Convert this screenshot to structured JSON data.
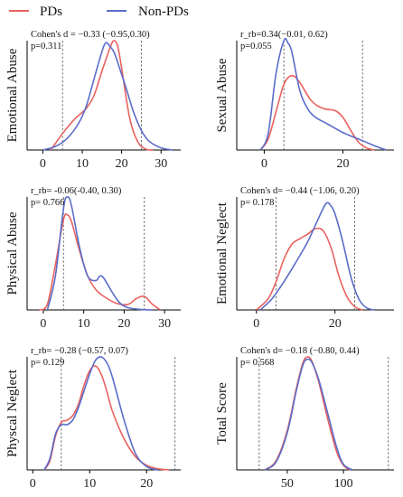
{
  "legend": [
    {
      "name": "PDs",
      "color": "#e8625f"
    },
    {
      "name": "Non-PDs",
      "color": "#5b6cc8"
    }
  ],
  "chart_data": [
    {
      "type": "line",
      "ylabel": "Emotional Abuse",
      "xlim": [
        -4,
        35
      ],
      "xticks": [
        "0",
        "10",
        "20",
        "30"
      ],
      "annotation": [
        "Cohen's d = −0.33 (−0.95,0.30)",
        "p=0.311"
      ],
      "vlines": [
        5,
        25
      ],
      "series": [
        {
          "name": "PDs",
          "x": [
            2,
            5,
            8,
            11,
            13,
            15,
            17,
            18,
            19,
            20,
            22,
            24,
            26,
            28
          ],
          "y": [
            0.0,
            0.15,
            0.28,
            0.38,
            0.5,
            0.72,
            0.93,
            1.0,
            0.95,
            0.75,
            0.3,
            0.08,
            0.01,
            0.0
          ]
        },
        {
          "name": "Non-PDs",
          "x": [
            0,
            3,
            6,
            9,
            11,
            13,
            15,
            16,
            17,
            18,
            19,
            21,
            23,
            25,
            27,
            30,
            33
          ],
          "y": [
            0.0,
            0.03,
            0.1,
            0.24,
            0.4,
            0.65,
            0.9,
            0.98,
            0.95,
            0.9,
            0.8,
            0.58,
            0.35,
            0.18,
            0.08,
            0.02,
            0.0
          ]
        }
      ]
    },
    {
      "type": "line",
      "ylabel": "Sexual Abuse",
      "xlim": [
        -7,
        33
      ],
      "xticks": [
        "0",
        "20"
      ],
      "annotation": [
        "r_rb=0.34(−0.01, 0.62)",
        "p=0.055"
      ],
      "vlines": [
        5,
        25
      ],
      "series": [
        {
          "name": "PDs",
          "x": [
            -1,
            1,
            3,
            5,
            7,
            9,
            12,
            15,
            18,
            20,
            22,
            24,
            26,
            28
          ],
          "y": [
            0.0,
            0.1,
            0.35,
            0.6,
            0.68,
            0.62,
            0.45,
            0.38,
            0.36,
            0.3,
            0.18,
            0.07,
            0.02,
            0.0
          ]
        },
        {
          "name": "Non-PDs",
          "x": [
            -1,
            1,
            3,
            5,
            6,
            7,
            9,
            11,
            13,
            16,
            20,
            24,
            28,
            31
          ],
          "y": [
            0.0,
            0.15,
            0.7,
            1.0,
            0.98,
            0.9,
            0.55,
            0.38,
            0.3,
            0.24,
            0.16,
            0.1,
            0.04,
            0.0
          ]
        }
      ]
    },
    {
      "type": "line",
      "ylabel": "Physical Abuse",
      "xlim": [
        -4,
        34
      ],
      "xticks": [
        "0",
        "10",
        "20",
        "30"
      ],
      "annotation": [
        "r_rb= -0.06(-0.40, 0.30)",
        "p= 0.766"
      ],
      "vlines": [
        5,
        25
      ],
      "series": [
        {
          "name": "PDs",
          "x": [
            -1,
            1,
            3,
            5,
            6,
            7,
            9,
            11,
            13,
            15,
            18,
            21,
            23,
            25,
            27,
            29
          ],
          "y": [
            0.0,
            0.05,
            0.4,
            0.8,
            0.84,
            0.78,
            0.52,
            0.3,
            0.18,
            0.12,
            0.06,
            0.05,
            0.1,
            0.12,
            0.05,
            0.0
          ]
        },
        {
          "name": "Non-PDs",
          "x": [
            1,
            3,
            5,
            6,
            7,
            9,
            11,
            13,
            14,
            15,
            17,
            19,
            21,
            24,
            27
          ],
          "y": [
            0.0,
            0.3,
            0.9,
            1.0,
            0.92,
            0.55,
            0.3,
            0.26,
            0.3,
            0.28,
            0.16,
            0.06,
            0.02,
            0.005,
            0.0
          ]
        }
      ]
    },
    {
      "type": "line",
      "ylabel": "Emotional Neglect",
      "xlim": [
        -5,
        35
      ],
      "xticks": [
        "0",
        "20"
      ],
      "annotation": [
        "Cohen's d= −0.44 (−1.06, 0.20)",
        "p= 0.178"
      ],
      "vlines": [
        5,
        25
      ],
      "series": [
        {
          "name": "PDs",
          "x": [
            0,
            3,
            5,
            7,
            9,
            11,
            13,
            15,
            17,
            19,
            21,
            23,
            25,
            27
          ],
          "y": [
            0.0,
            0.1,
            0.25,
            0.45,
            0.58,
            0.63,
            0.67,
            0.72,
            0.7,
            0.55,
            0.3,
            0.12,
            0.03,
            0.0
          ]
        },
        {
          "name": "Non-PDs",
          "x": [
            1,
            4,
            7,
            10,
            13,
            15,
            17,
            18,
            19,
            20,
            22,
            24,
            26,
            28,
            30
          ],
          "y": [
            0.0,
            0.1,
            0.25,
            0.42,
            0.6,
            0.75,
            0.9,
            0.95,
            0.92,
            0.85,
            0.6,
            0.3,
            0.1,
            0.02,
            0.0
          ]
        }
      ]
    },
    {
      "type": "line",
      "ylabel": "Physcal Neglect",
      "xlim": [
        -1,
        26
      ],
      "xticks": [
        "0",
        "10",
        "20"
      ],
      "annotation": [
        "r_rb= −0.28 (−0.57, 0.07)",
        "p= 0.129"
      ],
      "vlines": [
        5,
        25
      ],
      "series": [
        {
          "name": "PDs",
          "x": [
            2,
            3,
            4,
            5,
            6,
            7,
            8,
            9,
            10,
            11,
            12,
            13,
            14,
            16,
            18,
            20,
            22,
            24
          ],
          "y": [
            0.0,
            0.08,
            0.3,
            0.42,
            0.44,
            0.48,
            0.58,
            0.75,
            0.88,
            0.92,
            0.85,
            0.7,
            0.52,
            0.28,
            0.12,
            0.04,
            0.01,
            0.0
          ]
        },
        {
          "name": "Non-PDs",
          "x": [
            2,
            3,
            4,
            5,
            6,
            7,
            8,
            9,
            10,
            11,
            12,
            13,
            14,
            16,
            18,
            20,
            22
          ],
          "y": [
            0.0,
            0.1,
            0.32,
            0.4,
            0.4,
            0.44,
            0.55,
            0.7,
            0.85,
            0.97,
            1.0,
            0.95,
            0.82,
            0.45,
            0.15,
            0.03,
            0.0
          ]
        }
      ]
    },
    {
      "type": "line",
      "ylabel": "Total Score",
      "xlim": [
        5,
        145
      ],
      "xticks": [
        "50",
        "100"
      ],
      "annotation": [
        "Cohen's d= −0.18 (−0.80, 0.44)",
        "p= 0.568"
      ],
      "vlines": [
        25,
        140
      ],
      "series": [
        {
          "name": "PDs",
          "x": [
            30,
            40,
            50,
            58,
            64,
            68,
            72,
            78,
            86,
            94,
            100,
            106
          ],
          "y": [
            0.0,
            0.08,
            0.35,
            0.72,
            0.95,
            1.0,
            0.96,
            0.78,
            0.45,
            0.16,
            0.04,
            0.0
          ]
        },
        {
          "name": "Non-PDs",
          "x": [
            30,
            40,
            50,
            58,
            64,
            68,
            72,
            78,
            86,
            94,
            100,
            108
          ],
          "y": [
            0.0,
            0.07,
            0.33,
            0.7,
            0.93,
            0.98,
            0.95,
            0.8,
            0.5,
            0.2,
            0.05,
            0.0
          ]
        }
      ]
    }
  ]
}
